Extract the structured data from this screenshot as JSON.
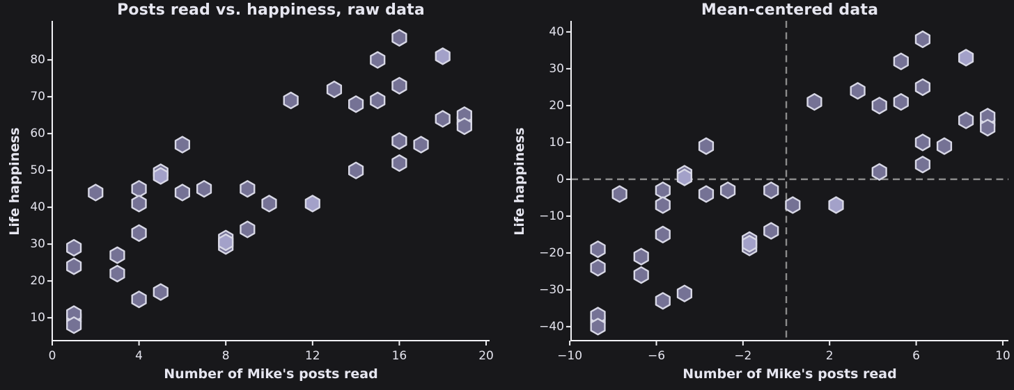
{
  "colors": {
    "background": "#18181b",
    "marker_fill_dark": "#757295",
    "marker_fill_light": "#a3a1c9",
    "marker_edge": "#d8d8e6",
    "axis": "#f2f2f6",
    "text": "#e6e6f0",
    "dashed_line": "#8c8c8c"
  },
  "chart_data": [
    {
      "type": "scatter",
      "title": "Posts read vs. happiness, raw data",
      "xlabel": "Number of Mike's posts read",
      "ylabel": "Life happiness",
      "marker": "hexagon",
      "grid": false,
      "xlim": [
        0,
        20.16
      ],
      "ylim": [
        3.8,
        90.6
      ],
      "xticks": {
        "values": [
          0,
          4,
          8,
          12,
          16,
          20
        ],
        "labels": [
          "0",
          "4",
          "8",
          "12",
          "16",
          "20"
        ]
      },
      "yticks": {
        "values": [
          10,
          20,
          30,
          40,
          50,
          60,
          70,
          80
        ],
        "labels": [
          "10",
          "20",
          "30",
          "40",
          "50",
          "60",
          "70",
          "80"
        ]
      },
      "points": [
        [
          1,
          10,
          "l"
        ],
        [
          1,
          29
        ],
        [
          1,
          24
        ],
        [
          1,
          11
        ],
        [
          1,
          8
        ],
        [
          2,
          44
        ],
        [
          3,
          27
        ],
        [
          3,
          22
        ],
        [
          4,
          45
        ],
        [
          4,
          41
        ],
        [
          4,
          33
        ],
        [
          4,
          15
        ],
        [
          5,
          49.5
        ],
        [
          5,
          48.5,
          "l"
        ],
        [
          5,
          17
        ],
        [
          6,
          57
        ],
        [
          6,
          44
        ],
        [
          7,
          45
        ],
        [
          8,
          31.5
        ],
        [
          8,
          29.5
        ],
        [
          8,
          30.5,
          "l"
        ],
        [
          9,
          45
        ],
        [
          9,
          34
        ],
        [
          10,
          41
        ],
        [
          11,
          69
        ],
        [
          12,
          41,
          "l"
        ],
        [
          13,
          72
        ],
        [
          14,
          68
        ],
        [
          14,
          50
        ],
        [
          15,
          80
        ],
        [
          15,
          69
        ],
        [
          16,
          86
        ],
        [
          16,
          73
        ],
        [
          16,
          58
        ],
        [
          16,
          52
        ],
        [
          17,
          57
        ],
        [
          18,
          81,
          "l"
        ],
        [
          18,
          64
        ],
        [
          19,
          63.5,
          "l"
        ],
        [
          19,
          65
        ],
        [
          19,
          62
        ]
      ]
    },
    {
      "type": "scatter",
      "title": "Mean-centered data",
      "xlabel": "Number of Mike's posts read",
      "ylabel": "Life happiness",
      "marker": "hexagon",
      "grid": false,
      "xlim": [
        -9.94,
        10.26
      ],
      "ylim": [
        -43.8,
        43.0
      ],
      "crosshair_x": 0,
      "crosshair_y": 0,
      "xticks": {
        "values": [
          -10,
          -6,
          -2,
          2,
          6,
          10
        ],
        "labels": [
          "−10",
          "−6",
          "−2",
          "2",
          "6",
          "10"
        ]
      },
      "yticks": {
        "values": [
          -40,
          -30,
          -20,
          -10,
          0,
          10,
          20,
          30,
          40
        ],
        "labels": [
          "−40",
          "−30",
          "−20",
          "−10",
          "0",
          "10",
          "20",
          "30",
          "40"
        ]
      },
      "points": [
        [
          -8.7,
          -38,
          "l"
        ],
        [
          -8.7,
          -19
        ],
        [
          -8.7,
          -24
        ],
        [
          -8.7,
          -37
        ],
        [
          -8.7,
          -40
        ],
        [
          -7.7,
          -4
        ],
        [
          -6.7,
          -21
        ],
        [
          -6.7,
          -26
        ],
        [
          -5.7,
          -3
        ],
        [
          -5.7,
          -7
        ],
        [
          -5.7,
          -15
        ],
        [
          -5.7,
          -33
        ],
        [
          -4.7,
          1.5
        ],
        [
          -4.7,
          0.5,
          "l"
        ],
        [
          -4.7,
          -31
        ],
        [
          -3.7,
          9
        ],
        [
          -3.7,
          -4
        ],
        [
          -2.7,
          -3
        ],
        [
          -1.7,
          -16.5
        ],
        [
          -1.7,
          -18.5
        ],
        [
          -1.7,
          -17.5,
          "l"
        ],
        [
          -0.7,
          -3
        ],
        [
          -0.7,
          -14
        ],
        [
          0.3,
          -7
        ],
        [
          1.3,
          21
        ],
        [
          2.3,
          -7,
          "l"
        ],
        [
          3.3,
          24
        ],
        [
          4.3,
          20
        ],
        [
          4.3,
          2
        ],
        [
          5.3,
          32
        ],
        [
          5.3,
          21
        ],
        [
          6.3,
          38
        ],
        [
          6.3,
          25
        ],
        [
          6.3,
          10
        ],
        [
          6.3,
          4
        ],
        [
          7.3,
          9
        ],
        [
          8.3,
          33,
          "l"
        ],
        [
          8.3,
          16
        ],
        [
          9.3,
          15.5,
          "l"
        ],
        [
          9.3,
          17
        ],
        [
          9.3,
          14
        ]
      ]
    }
  ]
}
